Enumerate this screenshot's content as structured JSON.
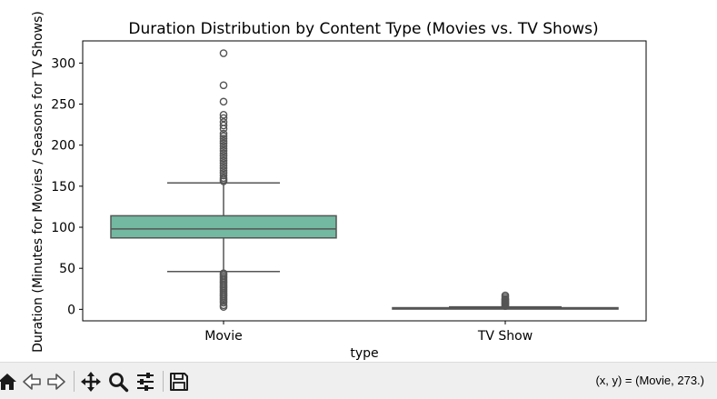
{
  "chart_data": {
    "type": "box",
    "title": "Duration Distribution by Content Type (Movies vs. TV Shows)",
    "xlabel": "type",
    "ylabel": "Duration (Minutes for Movies / Seasons for TV Shows)",
    "ylim": [
      -14,
      327
    ],
    "yticks": [
      0,
      50,
      100,
      150,
      200,
      250,
      300
    ],
    "grid": false,
    "categories": [
      "Movie",
      "TV Show"
    ],
    "boxes": [
      {
        "category": "Movie",
        "color": "#73b8a0",
        "whisker_low": 46,
        "q1": 87,
        "median": 98,
        "q3": 114,
        "whisker_high": 154,
        "outliers": [
          3,
          5,
          8,
          10,
          12,
          14,
          16,
          18,
          20,
          22,
          24,
          26,
          28,
          30,
          32,
          34,
          36,
          38,
          40,
          42,
          44,
          156,
          158,
          160,
          163,
          166,
          169,
          172,
          175,
          178,
          181,
          184,
          187,
          190,
          193,
          196,
          199,
          202,
          205,
          208,
          211,
          214,
          220,
          224,
          228,
          233,
          237,
          253,
          273,
          312
        ]
      },
      {
        "category": "TV Show",
        "color": "#73b8a0",
        "whisker_low": 1,
        "q1": 1,
        "median": 1,
        "q3": 2,
        "whisker_high": 3,
        "outliers": [
          4,
          5,
          6,
          7,
          8,
          9,
          10,
          11,
          12,
          13,
          15,
          17
        ]
      }
    ]
  },
  "toolbar": {
    "buttons": [
      {
        "name": "home-button",
        "icon": "home-icon"
      },
      {
        "name": "back-button",
        "icon": "arrow-left-icon"
      },
      {
        "name": "forward-button",
        "icon": "arrow-right-icon"
      },
      {
        "name": "pan-button",
        "icon": "move-icon"
      },
      {
        "name": "zoom-button",
        "icon": "magnifier-icon"
      },
      {
        "name": "configure-subplots-button",
        "icon": "sliders-icon"
      },
      {
        "name": "save-button",
        "icon": "floppy-disk-icon"
      }
    ],
    "coordinates": "(x, y) = (Movie, 273.)"
  }
}
